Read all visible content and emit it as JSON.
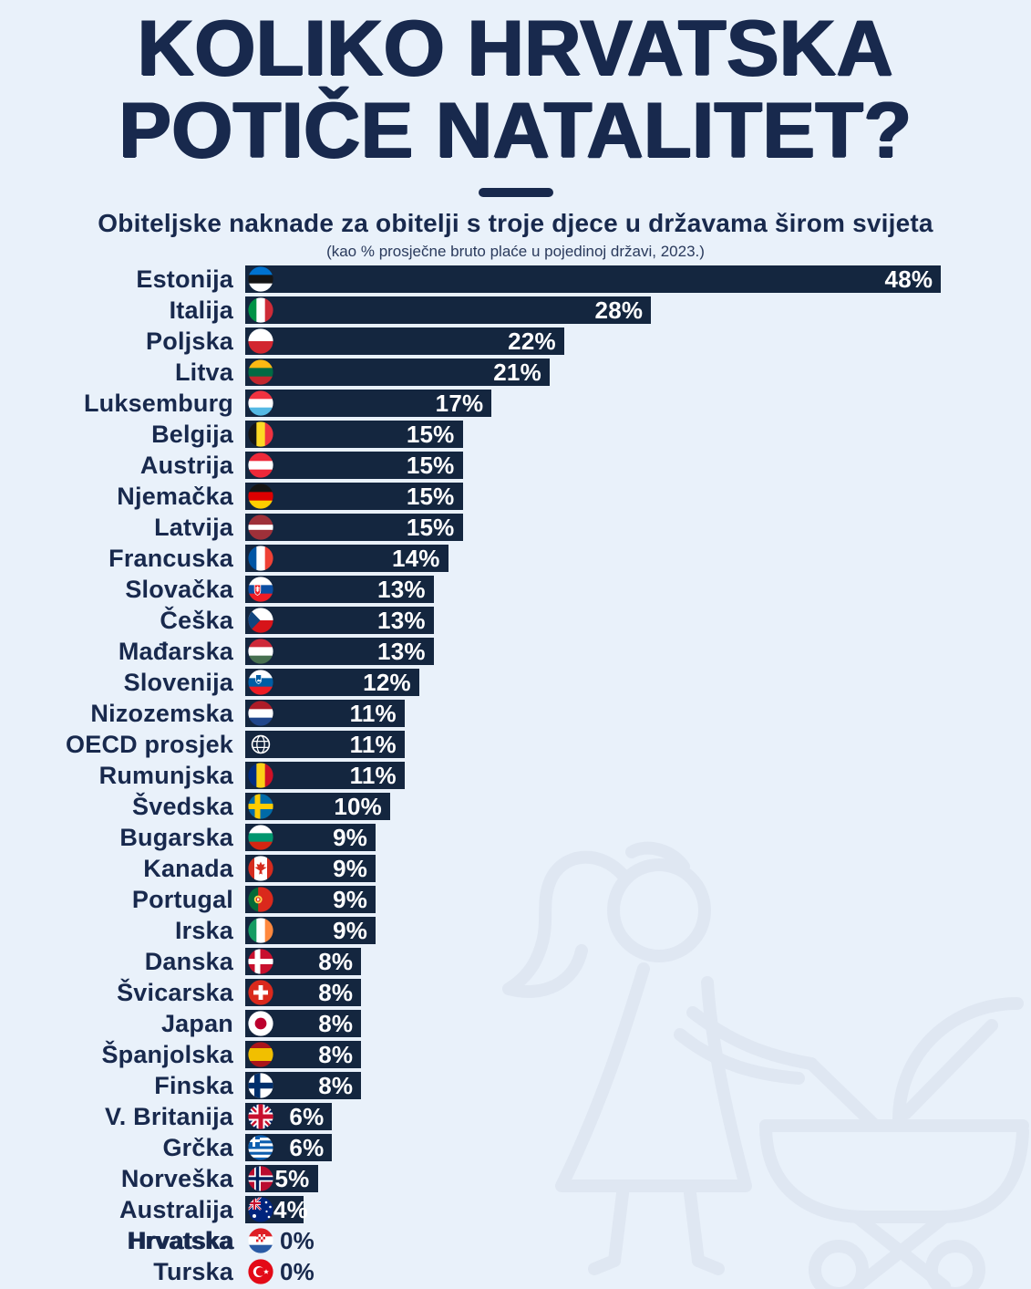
{
  "title": {
    "line1": "KOLIKO HRVATSKA",
    "line2": "POTIČE NATALITET?"
  },
  "colors": {
    "background": "#e9f1fa",
    "bar": "#14263f",
    "ink": "#18294d",
    "value_text": "#ffffff",
    "watermark": "#dfe7f2"
  },
  "chart_data": {
    "type": "bar",
    "orientation": "horizontal",
    "title": "KOLIKO HRVATSKA POTIČE NATALITET?",
    "subtitle": "Obiteljske naknade za obitelji s troje djece u državama širom svijeta",
    "note": "(kao % prosječne bruto plaće u pojedinoj državi, 2023.)",
    "unit": "%",
    "xlim": [
      0,
      48
    ],
    "grid": false,
    "legend": false,
    "value_labels": "inside-end",
    "rows": [
      {
        "label": "Estonija",
        "value": 48,
        "flag": "ee",
        "icon": "flag-estonia-icon"
      },
      {
        "label": "Italija",
        "value": 28,
        "flag": "it",
        "icon": "flag-italy-icon"
      },
      {
        "label": "Poljska",
        "value": 22,
        "flag": "pl",
        "icon": "flag-poland-icon"
      },
      {
        "label": "Litva",
        "value": 21,
        "flag": "lt",
        "icon": "flag-lithuania-icon"
      },
      {
        "label": "Luksemburg",
        "value": 17,
        "flag": "lu",
        "icon": "flag-luxembourg-icon"
      },
      {
        "label": "Belgija",
        "value": 15,
        "flag": "be",
        "icon": "flag-belgium-icon"
      },
      {
        "label": "Austrija",
        "value": 15,
        "flag": "at",
        "icon": "flag-austria-icon"
      },
      {
        "label": "Njemačka",
        "value": 15,
        "flag": "de",
        "icon": "flag-germany-icon"
      },
      {
        "label": "Latvija",
        "value": 15,
        "flag": "lv",
        "icon": "flag-latvia-icon"
      },
      {
        "label": "Francuska",
        "value": 14,
        "flag": "fr",
        "icon": "flag-france-icon"
      },
      {
        "label": "Slovačka",
        "value": 13,
        "flag": "sk",
        "icon": "flag-slovakia-icon"
      },
      {
        "label": "Češka",
        "value": 13,
        "flag": "cz",
        "icon": "flag-czechia-icon"
      },
      {
        "label": "Mađarska",
        "value": 13,
        "flag": "hu",
        "icon": "flag-hungary-icon"
      },
      {
        "label": "Slovenija",
        "value": 12,
        "flag": "si",
        "icon": "flag-slovenia-icon"
      },
      {
        "label": "Nizozemska",
        "value": 11,
        "flag": "nl",
        "icon": "flag-netherlands-icon"
      },
      {
        "label": "OECD prosjek",
        "value": 11,
        "flag": "oecd",
        "icon": "globe-icon"
      },
      {
        "label": "Rumunjska",
        "value": 11,
        "flag": "ro",
        "icon": "flag-romania-icon"
      },
      {
        "label": "Švedska",
        "value": 10,
        "flag": "se",
        "icon": "flag-sweden-icon"
      },
      {
        "label": "Bugarska",
        "value": 9,
        "flag": "bg",
        "icon": "flag-bulgaria-icon"
      },
      {
        "label": "Kanada",
        "value": 9,
        "flag": "ca",
        "icon": "flag-canada-icon"
      },
      {
        "label": "Portugal",
        "value": 9,
        "flag": "pt",
        "icon": "flag-portugal-icon"
      },
      {
        "label": "Irska",
        "value": 9,
        "flag": "ie",
        "icon": "flag-ireland-icon"
      },
      {
        "label": "Danska",
        "value": 8,
        "flag": "dk",
        "icon": "flag-denmark-icon"
      },
      {
        "label": "Švicarska",
        "value": 8,
        "flag": "ch",
        "icon": "flag-switzerland-icon"
      },
      {
        "label": "Japan",
        "value": 8,
        "flag": "jp",
        "icon": "flag-japan-icon"
      },
      {
        "label": "Španjolska",
        "value": 8,
        "flag": "es",
        "icon": "flag-spain-icon"
      },
      {
        "label": "Finska",
        "value": 8,
        "flag": "fi",
        "icon": "flag-finland-icon"
      },
      {
        "label": "V. Britanija",
        "value": 6,
        "flag": "gb",
        "icon": "flag-uk-icon"
      },
      {
        "label": "Grčka",
        "value": 6,
        "flag": "gr",
        "icon": "flag-greece-icon"
      },
      {
        "label": "Norveška",
        "value": 5,
        "flag": "no",
        "icon": "flag-norway-icon"
      },
      {
        "label": "Australija",
        "value": 4,
        "flag": "au",
        "icon": "flag-australia-icon"
      },
      {
        "label": "Hrvatska",
        "value": 0,
        "flag": "hr",
        "icon": "flag-croatia-icon",
        "emphasis": true
      },
      {
        "label": "Turska",
        "value": 0,
        "flag": "tr",
        "icon": "flag-turkey-icon"
      }
    ]
  }
}
